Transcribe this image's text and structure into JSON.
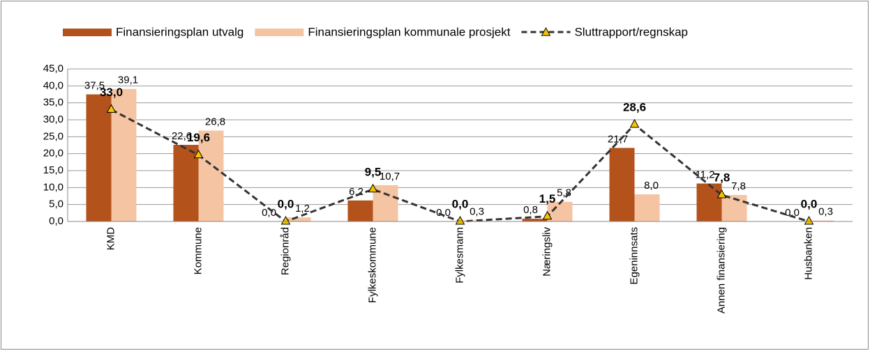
{
  "chart_data": {
    "type": "bar-line",
    "categories": [
      "KMD",
      "Kommune",
      "Regionråd",
      "Fylkeskommune",
      "Fylkesmann",
      "Næringsliv",
      "Egeninnsats",
      "Annen finansiering",
      "Husbanken"
    ],
    "series": [
      {
        "name": "Finansieringsplan utvalg",
        "color": "#b3521b",
        "type": "bar",
        "values": [
          37.5,
          22.6,
          0.0,
          6.2,
          0.0,
          0.8,
          21.7,
          11.2,
          0.0
        ],
        "value_labels": [
          "37,5",
          "22,6",
          "0,0",
          "6,2",
          "0,0",
          "0,8",
          "21,7",
          "11,2",
          "0,0"
        ]
      },
      {
        "name": "Finansieringsplan kommunale prosjekt",
        "color": "#f5c4a2",
        "type": "bar",
        "values": [
          39.1,
          26.8,
          1.2,
          10.7,
          0.3,
          5.8,
          8.0,
          7.8,
          0.3
        ],
        "value_labels": [
          "39,1",
          "26,8",
          "1,2",
          "10,7",
          "0,3",
          "5,8",
          "8,0",
          "7,8",
          "0,3"
        ]
      },
      {
        "name": "Sluttrapport/regnskap",
        "color": "#333333",
        "type": "line",
        "marker_color": "#f5c400",
        "values": [
          33.0,
          19.6,
          0.0,
          9.5,
          0.0,
          1.5,
          28.6,
          7.8,
          0.0
        ],
        "value_labels": [
          "33,0",
          "19,6",
          "0,0",
          "9,5",
          "0,0",
          "1,5",
          "28,6",
          "7,8",
          "0,0"
        ]
      }
    ],
    "ylim": [
      0,
      45
    ],
    "yticks": [
      {
        "value": 0,
        "label": "0,0"
      },
      {
        "value": 5,
        "label": "5,0"
      },
      {
        "value": 10,
        "label": "10,0"
      },
      {
        "value": 15,
        "label": "15,0"
      },
      {
        "value": 20,
        "label": "20,0"
      },
      {
        "value": 25,
        "label": "25,0"
      },
      {
        "value": 30,
        "label": "30,0"
      },
      {
        "value": 35,
        "label": "35,0"
      },
      {
        "value": 40,
        "label": "40,0"
      },
      {
        "value": 45,
        "label": "45,0"
      }
    ],
    "grid": true,
    "legend": "top"
  }
}
